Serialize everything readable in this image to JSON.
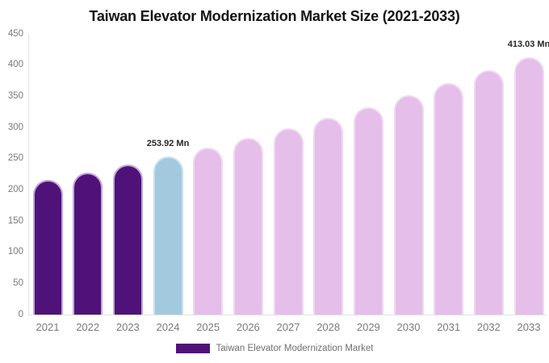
{
  "title": "Taiwan Elevator Modernization Market Size (2021-2033)",
  "legend": {
    "label": "Taiwan Elevator Modernization Market",
    "swatch_color": "#4e1279"
  },
  "colors": {
    "historical_bar": "#4e1279",
    "historical_stroke": "#c5a4d8",
    "current_bar": "#a3c9df",
    "current_stroke": "#c9e0ed",
    "forecast_bar": "#e5bee9",
    "forecast_stroke": "#f0d9f2",
    "axis_line": "#e3e3e3",
    "tick_text": "#7a7a7a",
    "title_text": "#141414",
    "annotation_text": "#262626"
  },
  "chart_data": {
    "type": "bar",
    "title": "Taiwan Elevator Modernization Market Size (2021-2033)",
    "xlabel": "",
    "ylabel": "",
    "unit": "Mn",
    "categories": [
      "2021",
      "2022",
      "2023",
      "2024",
      "2025",
      "2026",
      "2027",
      "2028",
      "2029",
      "2030",
      "2031",
      "2032",
      "2033"
    ],
    "values": [
      215.91,
      227.9,
      240.56,
      253.92,
      268.03,
      282.93,
      298.64,
      315.24,
      332.76,
      351.24,
      370.76,
      391.36,
      413.03
    ],
    "bar_roles": [
      "historical",
      "historical",
      "historical",
      "current",
      "forecast",
      "forecast",
      "forecast",
      "forecast",
      "forecast",
      "forecast",
      "forecast",
      "forecast",
      "forecast"
    ],
    "ylim": [
      0,
      450
    ],
    "ytick_step": 50,
    "ytick_labels": [
      "0",
      "50",
      "100",
      "150",
      "200",
      "250",
      "300",
      "350",
      "400",
      "450"
    ],
    "grid": false,
    "legend_position": "bottom",
    "annotations": [
      {
        "category": "2024",
        "index": 3,
        "text": "253.92 Mn"
      },
      {
        "category": "2033",
        "index": 12,
        "text": "413.03 Mn"
      }
    ]
  }
}
